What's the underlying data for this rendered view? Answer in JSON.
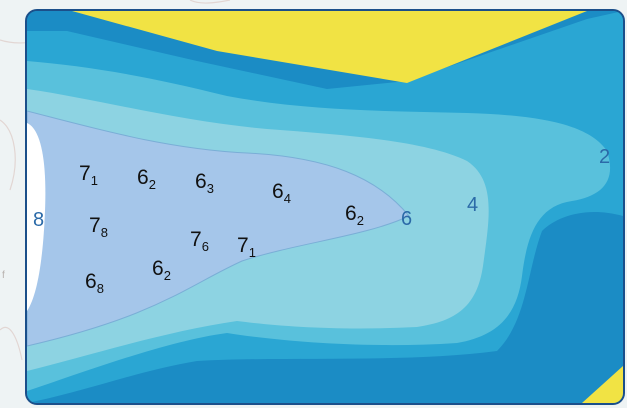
{
  "colors": {
    "frame": "#1b4f8a",
    "sand": "#f1e344",
    "zone_deep": "#1b8cc5",
    "zone_2": "#2aa6d3",
    "zone_4": "#59c1dc",
    "zone_6": "#8dd3e2",
    "zone_8": "#a5c6ea",
    "hole": "#ffffff",
    "contour_label": "#2b6aa8"
  },
  "contour_labels": [
    {
      "text": "2",
      "color": "#2b6aa8"
    },
    {
      "text": "4",
      "color": "#2b6aa8"
    },
    {
      "text": "6",
      "color": "#2b6aa8"
    },
    {
      "text": "8",
      "color": "#2b6aa8"
    }
  ],
  "soundings": [
    {
      "main": "7",
      "sub": "1"
    },
    {
      "main": "6",
      "sub": "2"
    },
    {
      "main": "6",
      "sub": "3"
    },
    {
      "main": "6",
      "sub": "4"
    },
    {
      "main": "6",
      "sub": "2"
    },
    {
      "main": "7",
      "sub": "8"
    },
    {
      "main": "7",
      "sub": "6"
    },
    {
      "main": "7",
      "sub": "1"
    },
    {
      "main": "6",
      "sub": "2"
    },
    {
      "main": "6",
      "sub": "8"
    }
  ],
  "side_fragment": "f"
}
